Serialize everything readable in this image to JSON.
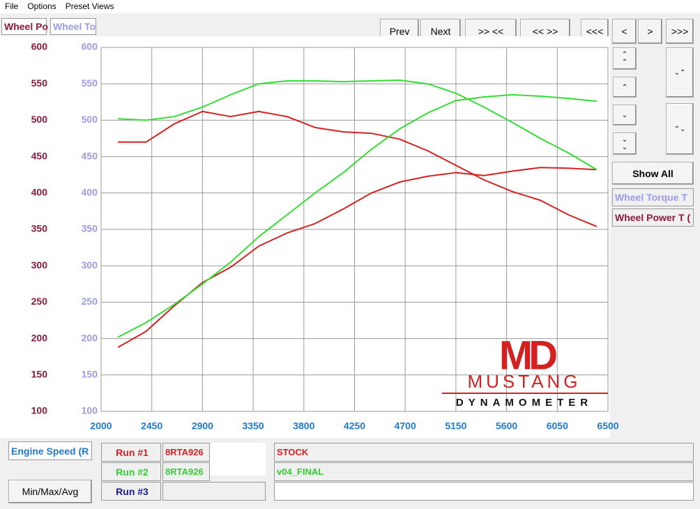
{
  "menu": [
    "File",
    "Options",
    "Preset Views"
  ],
  "tabs": [
    "Wheel Po",
    "Wheel To"
  ],
  "nav_buttons": [
    "Prev",
    "Next",
    ">> <<",
    "<< >>",
    "<<<",
    "<",
    ">",
    ">>>"
  ],
  "side_panel": {
    "show_all": "Show All",
    "channels": [
      "Wheel Torque T",
      "Wheel Power T ("
    ]
  },
  "logo": {
    "mark": "MD",
    "name": "MUSTANG",
    "subtitle": "DYNAMOMETER"
  },
  "bottom": {
    "x_channel": "Engine Speed (R",
    "min_max_button": "Min/Max/Avg",
    "runs": [
      {
        "label": "Run #1",
        "id": "8RTA926",
        "description": "STOCK"
      },
      {
        "label": "Run #2",
        "id": "8RTA926",
        "description": "v04_FINAL"
      },
      {
        "label": "Run #3"
      }
    ]
  },
  "chart_data": {
    "type": "line",
    "x": [
      2150,
      2400,
      2650,
      2900,
      3150,
      3400,
      3650,
      3900,
      4150,
      4400,
      4650,
      4900,
      5150,
      5400,
      5650,
      5900,
      6150,
      6400
    ],
    "xlim": [
      2000,
      6500
    ],
    "xticks": [
      2000,
      2450,
      2900,
      3350,
      3800,
      4250,
      4700,
      5150,
      5600,
      6050,
      6500
    ],
    "ylim": [
      100,
      600
    ],
    "yticks": [
      100,
      150,
      200,
      250,
      300,
      350,
      400,
      450,
      500,
      550,
      600
    ],
    "y2lim": [
      100,
      600
    ],
    "y2ticks": [
      100,
      150,
      200,
      250,
      300,
      350,
      400,
      450,
      500,
      550,
      600
    ],
    "grid": true,
    "series": [
      {
        "color": "#d42020",
        "values": [
          188,
          210,
          245,
          277,
          298,
          327,
          345,
          358,
          378,
          400,
          415,
          423,
          428,
          424,
          430,
          435,
          434,
          432
        ]
      },
      {
        "color": "#d42020",
        "axis": "y2",
        "values": [
          470,
          470,
          495,
          512,
          505,
          512,
          505,
          490,
          484,
          482,
          474,
          458,
          438,
          418,
          402,
          390,
          370,
          354
        ]
      },
      {
        "color": "#33dd33",
        "values": [
          202,
          222,
          247,
          275,
          305,
          340,
          370,
          400,
          428,
          460,
          488,
          510,
          527,
          532,
          535,
          533,
          530,
          526
        ]
      },
      {
        "color": "#33dd33",
        "axis": "y2",
        "values": [
          502,
          500,
          505,
          518,
          535,
          550,
          554,
          554,
          553,
          554,
          555,
          550,
          537,
          518,
          497,
          475,
          455,
          432
        ]
      }
    ]
  }
}
